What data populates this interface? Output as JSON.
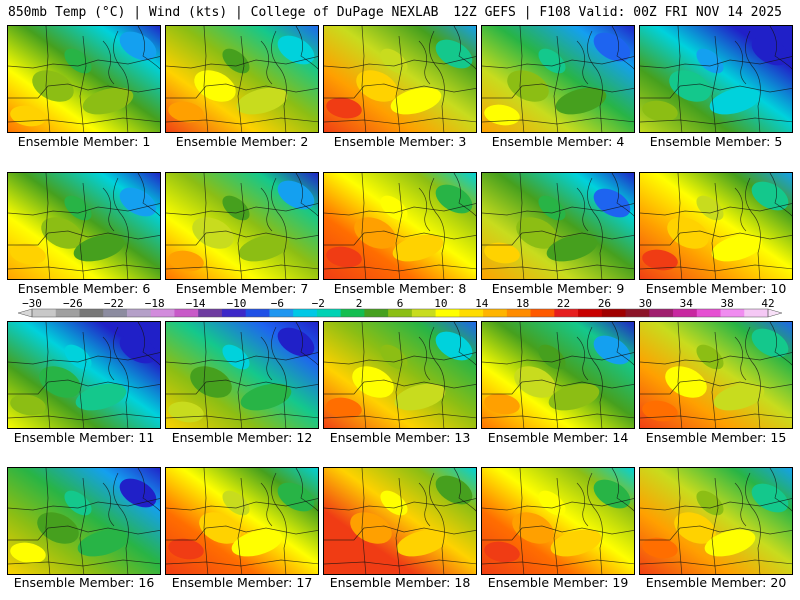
{
  "header": {
    "left": "850mb Temp (°C) | Wind (kts) | College of DuPage NEXLAB",
    "right": "12Z GEFS | F108 Valid: 00Z FRI NOV 14 2025"
  },
  "caption_prefix": "Ensemble Member: ",
  "members": [
    1,
    2,
    3,
    4,
    5,
    6,
    7,
    8,
    9,
    10,
    11,
    12,
    13,
    14,
    15,
    16,
    17,
    18,
    19,
    20
  ],
  "member_warmth": [
    0.62,
    0.7,
    0.78,
    0.55,
    0.38,
    0.6,
    0.66,
    0.85,
    0.58,
    0.8,
    0.42,
    0.48,
    0.72,
    0.64,
    0.74,
    0.52,
    0.82,
    0.88,
    0.86,
    0.77
  ],
  "colorbar": {
    "ticks": [
      "−30",
      "−26",
      "−22",
      "−18",
      "−14",
      "−10",
      "−6",
      "−2",
      "2",
      "6",
      "10",
      "14",
      "18",
      "22",
      "26",
      "30",
      "34",
      "38",
      "42"
    ],
    "colors": [
      "#c8c8c8",
      "#a0a0a0",
      "#787878",
      "#8c8ca0",
      "#b4a0c8",
      "#d28cdc",
      "#c85ac8",
      "#6e3ca0",
      "#3c28c8",
      "#1e50e6",
      "#1e96f0",
      "#00c8e6",
      "#00d2b4",
      "#14be50",
      "#46a01e",
      "#8cbe14",
      "#c8dc1e",
      "#ffff00",
      "#ffdc00",
      "#ffb400",
      "#ff8c00",
      "#ff5a00",
      "#e61e1e",
      "#c80000",
      "#a00000",
      "#8c1428",
      "#a01e6e",
      "#c828a0",
      "#e650d2",
      "#f08cf0",
      "#f5c8f5"
    ]
  }
}
